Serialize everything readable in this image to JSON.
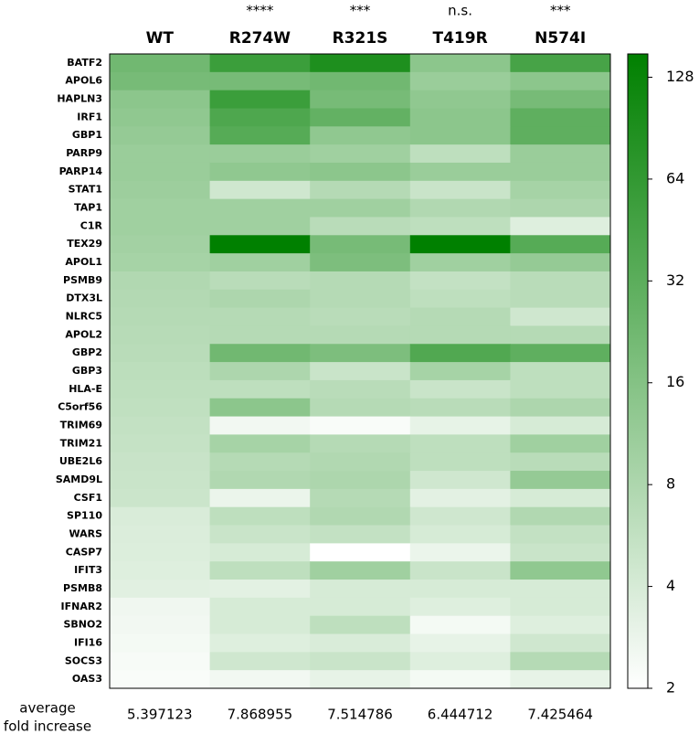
{
  "chart_data": {
    "type": "heatmap",
    "columns": [
      "WT",
      "R274W",
      "R321S",
      "T419R",
      "N574I"
    ],
    "significance": [
      null,
      "****",
      "***",
      "n.s.",
      "***"
    ],
    "rows": [
      "BATF2",
      "APOL6",
      "HAPLN3",
      "IRF1",
      "GBP1",
      "PARP9",
      "PARP14",
      "STAT1",
      "TAP1",
      "C1R",
      "TEX29",
      "APOL1",
      "PSMB9",
      "DTX3L",
      "NLRC5",
      "APOL2",
      "GBP2",
      "GBP3",
      "HLA-E",
      "C5orf56",
      "TRIM69",
      "TRIM21",
      "UBE2L6",
      "SAMD9L",
      "CSF1",
      "SP110",
      "WARS",
      "CASP7",
      "IFIT3",
      "PSMB8",
      "IFNAR2",
      "SBNO2",
      "IFI16",
      "SOCS3",
      "OAS3"
    ],
    "values": [
      [
        22,
        55,
        90,
        14,
        45
      ],
      [
        20,
        20,
        22,
        11,
        14
      ],
      [
        14,
        55,
        20,
        13,
        20
      ],
      [
        13,
        40,
        28,
        14,
        30
      ],
      [
        12,
        35,
        13,
        14,
        30
      ],
      [
        11,
        11,
        10,
        6,
        11
      ],
      [
        11,
        13,
        14,
        11,
        11
      ],
      [
        10.5,
        4.5,
        7,
        5,
        9
      ],
      [
        10,
        10,
        10,
        7.5,
        8
      ],
      [
        10,
        10,
        6.5,
        6,
        3.5
      ],
      [
        9.5,
        150,
        20,
        150,
        35
      ],
      [
        9,
        10,
        18,
        10,
        12
      ],
      [
        7.5,
        6.5,
        7,
        5.5,
        6.5
      ],
      [
        7.2,
        8,
        7,
        6,
        6.5
      ],
      [
        7,
        7,
        6.5,
        7,
        4.5
      ],
      [
        6.8,
        7,
        7,
        7,
        7
      ],
      [
        6.5,
        22,
        18,
        38,
        30
      ],
      [
        6.2,
        8,
        5,
        9,
        6
      ],
      [
        6,
        6,
        6.5,
        5,
        6
      ],
      [
        5.8,
        14,
        7,
        6.5,
        8
      ],
      [
        5.5,
        2.5,
        2.2,
        3,
        4
      ],
      [
        5.3,
        9,
        7,
        6,
        10
      ],
      [
        5.1,
        7,
        7.5,
        6,
        6.5
      ],
      [
        5,
        7.5,
        8,
        4.5,
        12
      ],
      [
        4.8,
        2.8,
        7,
        3.2,
        4
      ],
      [
        3.8,
        6,
        7.5,
        4.5,
        7.5
      ],
      [
        3.7,
        5,
        5.5,
        4,
        5.5
      ],
      [
        3.6,
        4,
        2,
        2.8,
        5
      ],
      [
        3.5,
        6,
        10,
        5,
        13
      ],
      [
        3.3,
        3.2,
        4,
        4,
        4
      ],
      [
        2.6,
        4,
        4,
        3.5,
        4
      ],
      [
        2.5,
        4,
        6,
        2.4,
        3.5
      ],
      [
        2.4,
        3.5,
        3.8,
        3,
        4.5
      ],
      [
        2.3,
        4.5,
        5,
        3.5,
        7
      ],
      [
        2.2,
        2.5,
        3,
        2.4,
        3
      ]
    ],
    "zlim": [
      2,
      150
    ],
    "zticks": [
      2,
      4,
      8,
      16,
      32,
      64,
      128
    ],
    "zscale": "log2",
    "colormap": [
      "#ffffff",
      "#008000"
    ],
    "footer_label": [
      "average",
      "fold increase"
    ],
    "footer_values": [
      5.397123,
      7.868955,
      7.514786,
      6.444712,
      7.425464
    ]
  }
}
